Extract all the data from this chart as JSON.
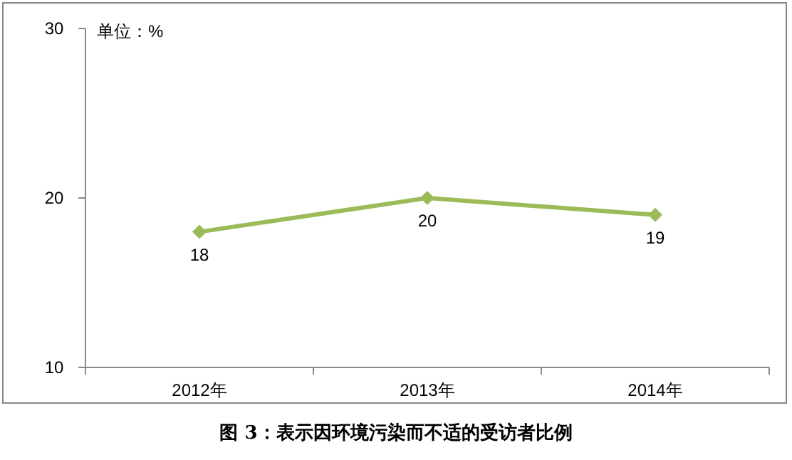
{
  "chart_data": {
    "type": "line",
    "title": "图 3：表示因环境污染而不适的受访者比例",
    "annotations": [
      "单位：%"
    ],
    "categories": [
      "2012年",
      "2013年",
      "2014年"
    ],
    "series": [
      {
        "color": "#9bbb59",
        "values": [
          18,
          20,
          19
        ]
      }
    ],
    "ylim": [
      10,
      30
    ],
    "yticks": [
      10,
      20,
      30
    ],
    "marker": "diamond",
    "data_labels": true
  }
}
